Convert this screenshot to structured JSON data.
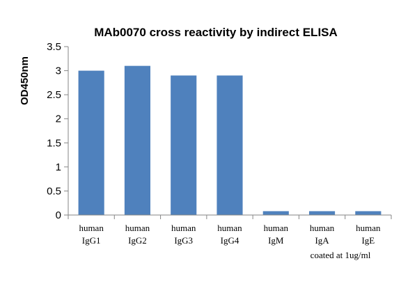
{
  "chart_data": {
    "type": "bar",
    "title": "MAb0070 cross reactivity by indirect ELISA",
    "xlabel": "",
    "ylabel": "OD450nm",
    "ylim": [
      0,
      3.5
    ],
    "yticks": [
      "0",
      "0.5",
      "1",
      "1.5",
      "2",
      "2.5",
      "3",
      "3.5"
    ],
    "grid": false,
    "legend": "none",
    "bar_color": "#4f81bd",
    "categories": [
      [
        "human",
        "IgG1"
      ],
      [
        "human",
        "IgG2"
      ],
      [
        "human",
        "IgG3"
      ],
      [
        "human",
        "IgG4"
      ],
      [
        "human",
        "IgM"
      ],
      [
        "human",
        "IgA"
      ],
      [
        "human",
        "IgE"
      ]
    ],
    "values": [
      3.0,
      3.1,
      2.9,
      2.9,
      0.08,
      0.08,
      0.08
    ],
    "annotation": "coated at 1ug/ml"
  }
}
